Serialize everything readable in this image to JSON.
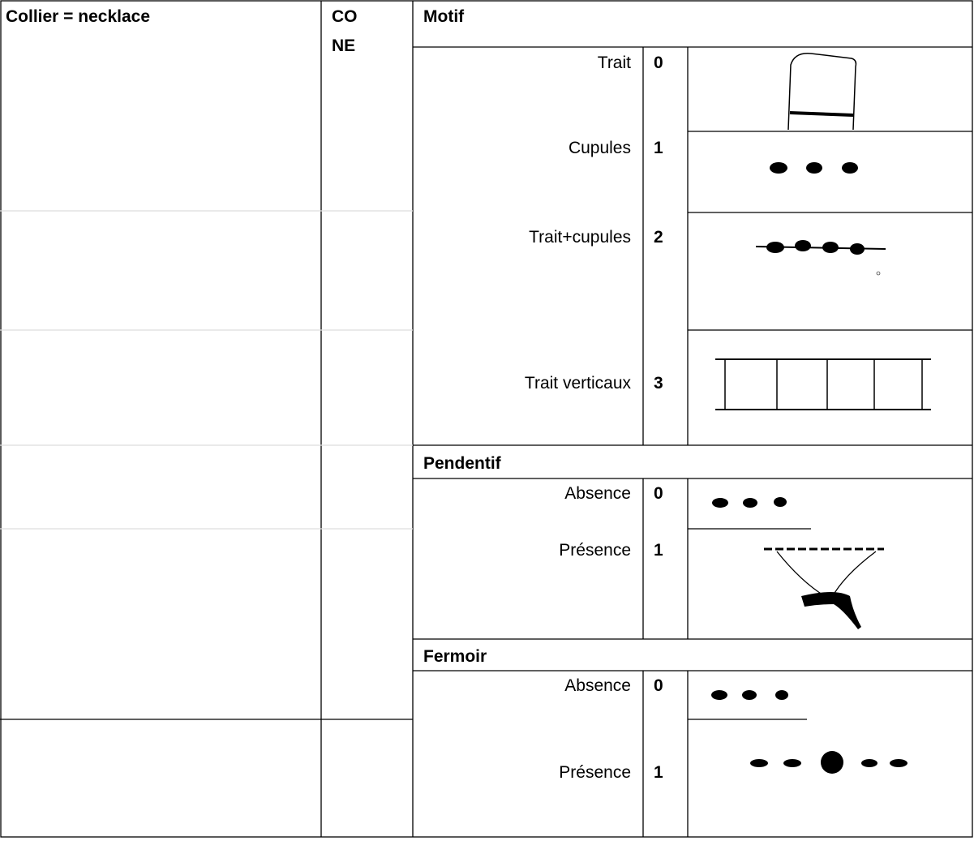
{
  "table": {
    "column_1": "Collier = necklace",
    "column_2": [
      "CO",
      "NE"
    ],
    "sections": [
      {
        "title": "Motif",
        "rows": [
          {
            "label": "Trait",
            "code": 0
          },
          {
            "label": "Cupules",
            "code": 1
          },
          {
            "label": "Trait+cupules",
            "code": 2
          },
          {
            "label": "Trait verticaux",
            "code": 3
          }
        ]
      },
      {
        "title": "Pendentif",
        "rows": [
          {
            "label": "Absence",
            "code": 0
          },
          {
            "label": "Présence",
            "code": 1
          }
        ]
      },
      {
        "title": "Fermoir",
        "rows": [
          {
            "label": "Absence",
            "code": 0
          },
          {
            "label": "Présence",
            "code": 1
          }
        ]
      }
    ]
  }
}
